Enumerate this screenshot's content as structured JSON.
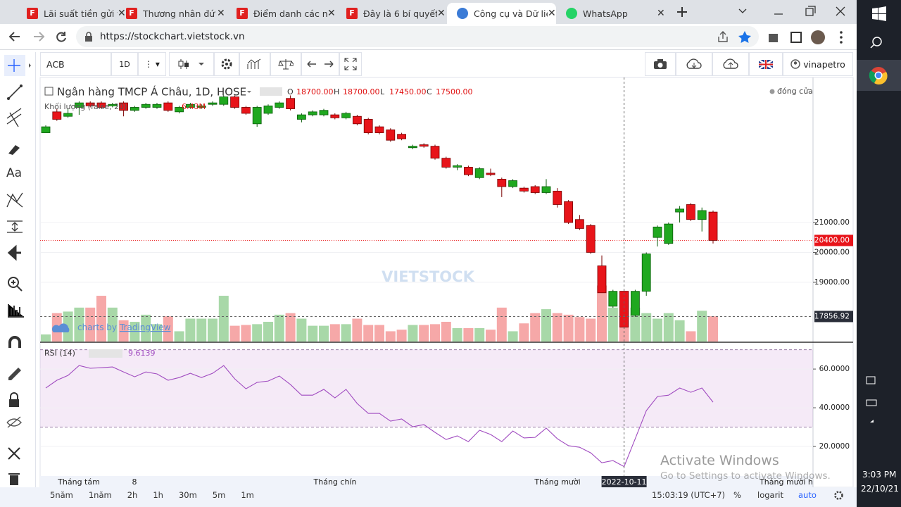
{
  "browser": {
    "tabs": [
      "Lãi suất tiền gửi t",
      "Thương nhân đứ",
      "Điểm danh các n",
      "Đây là 6 bí quyết",
      "Công cụ và Dữ liệ",
      "WhatsApp"
    ],
    "url": "https://stockchart.vietstock.vn"
  },
  "toolbar": {
    "symbol": "ACB",
    "interval": "1D",
    "user": "vinapetro",
    "text_tool": "Aa"
  },
  "chart_data": {
    "type": "candlestick",
    "title": "Ngân hàng TMCP Á Châu, 1D, HOSE",
    "ohlc_legend": [
      {
        "key": "O",
        "label": "18700.00"
      },
      {
        "key": "H",
        "label": "18700.00"
      },
      {
        "key": "L",
        "label": "17450.00"
      },
      {
        "key": "C",
        "label": "17500.00"
      }
    ],
    "status": "đóng cửa",
    "volume_title": "Khối lượng (false, 20)",
    "volume_value_label": "6.43M",
    "open": [
      24000,
      24700,
      24550,
      24850,
      25000,
      25000,
      24900,
      25000,
      24750,
      24850,
      24850,
      25000,
      24700,
      24850,
      24850,
      24950,
      24950,
      25200,
      24850,
      24300,
      24650,
      24850,
      25150,
      24450,
      24600,
      24600,
      24600,
      24500,
      24550,
      24450,
      24200,
      24100,
      23950,
      23500,
      23600,
      23550,
      23150,
      22850,
      22850,
      22500,
      22650,
      22450,
      22200,
      22150,
      22200,
      22000,
      22050,
      21700,
      21100,
      20900,
      19550,
      18200,
      18700,
      17900,
      18700,
      20500,
      20300,
      21350,
      21600,
      21100,
      21350
    ],
    "high": [
      24250,
      24800,
      24800,
      25050,
      25050,
      25050,
      25000,
      25050,
      24900,
      25000,
      25000,
      25050,
      24900,
      25000,
      24950,
      25050,
      25250,
      25250,
      24900,
      24900,
      24950,
      25050,
      25250,
      24650,
      24750,
      24800,
      24650,
      24700,
      24600,
      24500,
      24250,
      24150,
      24000,
      23600,
      23650,
      23600,
      23200,
      22950,
      22900,
      22850,
      22800,
      22500,
      22450,
      22200,
      22250,
      22450,
      22150,
      21750,
      21250,
      20950,
      19900,
      18750,
      18700,
      18750,
      20000,
      20900,
      21000,
      21550,
      21650,
      21500,
      21400
    ],
    "low": [
      24000,
      24400,
      24500,
      24600,
      24850,
      24800,
      24850,
      24550,
      24700,
      24800,
      24800,
      24700,
      24650,
      24800,
      24800,
      24900,
      24900,
      24800,
      24600,
      24200,
      24600,
      24800,
      24750,
      24350,
      24550,
      24550,
      24450,
      24450,
      24250,
      23950,
      23950,
      23700,
      23750,
      23450,
      23500,
      23100,
      22800,
      22750,
      22550,
      22450,
      22550,
      21850,
      22150,
      22000,
      21950,
      21950,
      21500,
      20950,
      20750,
      19950,
      18650,
      18150,
      17450,
      17850,
      18550,
      20200,
      20250,
      21000,
      21050,
      20700,
      20300
    ],
    "close": [
      24200,
      24450,
      24650,
      25000,
      24900,
      24850,
      24950,
      24750,
      24850,
      24950,
      24950,
      24750,
      24850,
      24950,
      24900,
      25000,
      25200,
      24850,
      24650,
      24850,
      24900,
      25000,
      24800,
      24600,
      24700,
      24750,
      24500,
      24650,
      24300,
      24000,
      24000,
      23750,
      23800,
      23550,
      23550,
      23150,
      22850,
      22900,
      22600,
      22800,
      22600,
      22200,
      22400,
      22050,
      22000,
      22200,
      21600,
      21000,
      20800,
      20000,
      18650,
      18700,
      17500,
      18700,
      19950,
      20850,
      20950,
      21450,
      21100,
      21400,
      20400
    ],
    "volumes": [
      0.9,
      3.6,
      3.8,
      4.3,
      4.3,
      5.8,
      4.3,
      2.7,
      2.5,
      3.4,
      2.2,
      3.2,
      1.3,
      2.9,
      2.9,
      2.9,
      5.8,
      2.0,
      2.1,
      2.2,
      2.5,
      3.4,
      3.6,
      2.9,
      2.0,
      2.0,
      2.2,
      2.2,
      2.9,
      2.1,
      2.1,
      1.3,
      1.5,
      2.1,
      2.1,
      2.2,
      2.5,
      1.7,
      1.7,
      1.7,
      1.5,
      4.3,
      1.3,
      2.3,
      3.6,
      4.1,
      3.6,
      3.4,
      3.1,
      2.9,
      7.1,
      4.3,
      6.43,
      4.3,
      3.6,
      2.9,
      3.6,
      2.7,
      1.3,
      3.9,
      3.2
    ],
    "ylim": [
      17020,
      25850
    ],
    "yticks": [
      {
        "value": 21000,
        "label": "21000.00"
      },
      {
        "value": 20000,
        "label": "20000.00"
      },
      {
        "value": 19000,
        "label": "19000.00"
      }
    ],
    "last_price": {
      "value": 20400,
      "label": "20400.00"
    },
    "crosshair_price": 17856.92,
    "crosshair_date": "2022-10-11",
    "x_labels": [
      "Tháng tám",
      "8",
      "Tháng chín",
      "Tháng mười",
      "Tháng mười h"
    ],
    "rsi": {
      "title": "RSI (14)",
      "values": [
        50.2,
        54.2,
        56.7,
        61.8,
        60.4,
        60.7,
        61.1,
        58.5,
        56,
        58.5,
        57.5,
        54.2,
        55.6,
        57.8,
        55.6,
        57.8,
        61.8,
        54.9,
        49.8,
        53.1,
        53.8,
        56.4,
        52,
        46.5,
        46.5,
        49.5,
        45.1,
        49.5,
        42.2,
        37.1,
        37.1,
        33.1,
        34.2,
        30.2,
        31.3,
        27.3,
        23.6,
        25.5,
        22.5,
        28.4,
        26.2,
        22.5,
        28,
        24.4,
        24.7,
        29.5,
        24,
        20.4,
        19.6,
        16.7,
        11.6,
        12.7,
        9.6139,
        24,
        38.5,
        45.8,
        46.5,
        50.2,
        48,
        50.2,
        42.9
      ],
      "ylim": [
        6.2,
        72.4
      ],
      "yticks": [
        {
          "value": 60,
          "label": "60.0000"
        },
        {
          "value": 40,
          "label": "40.0000"
        },
        {
          "value": 20,
          "label": "20.0000"
        }
      ],
      "band": [
        30,
        70
      ]
    },
    "watermark": "VIETSTOCK",
    "credit": "charts by",
    "credit_link": "TradingView"
  },
  "bottom_bar": {
    "ranges": [
      "5năm",
      "1năm",
      "2h",
      "1h",
      "30m",
      "5m",
      "1m"
    ],
    "time": "15:03:19 (UTC+7)",
    "percent": "%",
    "log": "logarit",
    "auto": "auto"
  },
  "os": {
    "activate_title": "Activate Windows",
    "activate_text": "Go to Settings to activate Windows.",
    "time": "3:03 PM",
    "date": "22/10/21"
  }
}
